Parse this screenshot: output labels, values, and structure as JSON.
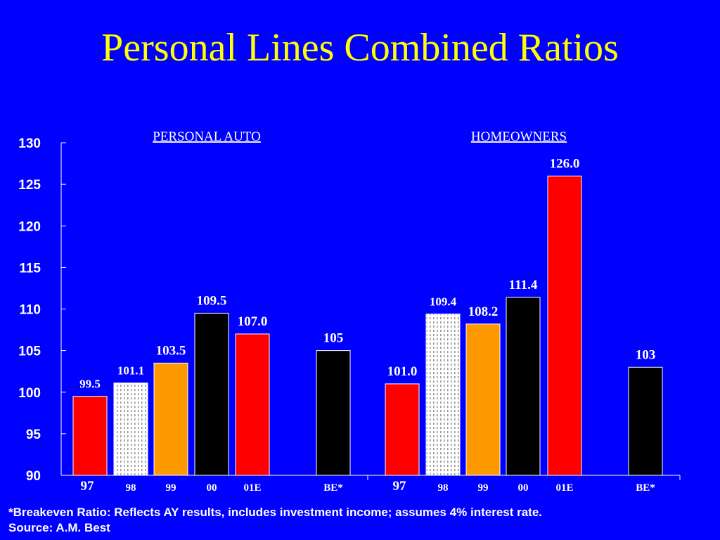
{
  "title": "Personal Lines Combined Ratios",
  "footnote": "*Breakeven Ratio: Reflects AY results, includes investment income; assumes 4% interest rate.",
  "source": "Source:  A.M. Best",
  "colors": {
    "background": "#0000ff",
    "title": "#ffff00",
    "text": "#ffffff",
    "red": "#ff0000",
    "orange": "#ff9900",
    "black": "#000000",
    "pattern": "#ffffff"
  },
  "chart_data": {
    "type": "bar",
    "ylim": [
      90,
      130
    ],
    "yticks": [
      "90",
      "95",
      "100",
      "105",
      "110",
      "115",
      "120",
      "125",
      "130"
    ],
    "groups": [
      {
        "name": "PERSONAL AUTO",
        "categories": [
          "97",
          "98",
          "99",
          "00",
          "01E",
          "BE*"
        ],
        "values": [
          99.5,
          101.1,
          103.5,
          109.5,
          107.0,
          105
        ],
        "labels": [
          "99.5",
          "101.1",
          "103.5",
          "109.5",
          "107.0",
          "105"
        ],
        "fills": [
          "red",
          "pattern",
          "orange",
          "black",
          "red",
          "black"
        ]
      },
      {
        "name": "HOMEOWNERS",
        "categories": [
          "97",
          "98",
          "99",
          "00",
          "01E",
          "BE*"
        ],
        "values": [
          101.0,
          109.4,
          108.2,
          111.4,
          126.0,
          103
        ],
        "labels": [
          "101.0",
          "109.4",
          "108.2",
          "111.4",
          "126.0",
          "103"
        ],
        "fills": [
          "red",
          "pattern",
          "orange",
          "black",
          "red",
          "black"
        ]
      }
    ]
  }
}
